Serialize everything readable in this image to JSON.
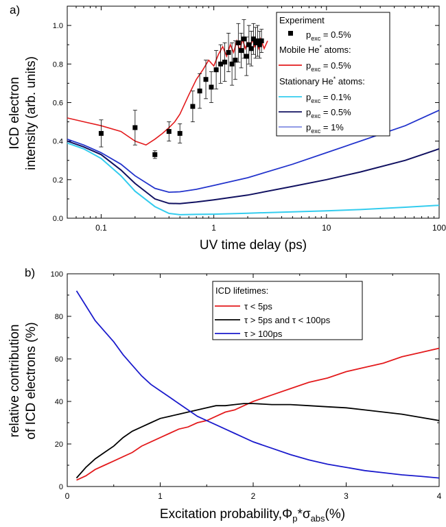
{
  "chart_data": [
    {
      "panel": "a)",
      "type": "line",
      "xlabel": "UV time delay (ps)",
      "ylabel_lines": [
        "ICD electron",
        "intensity (arb. units)"
      ],
      "xscale": "log",
      "xlim": [
        0.05,
        100
      ],
      "ylim": [
        0.0,
        1.1
      ],
      "xtick_labels": [
        {
          "v": 0.1,
          "label": "0.1"
        },
        {
          "v": 1,
          "label": "1"
        },
        {
          "v": 10,
          "label": "10"
        },
        {
          "v": 100,
          "label": "100"
        }
      ],
      "ytick_labels": [
        {
          "v": 0.0,
          "label": "0.0"
        },
        {
          "v": 0.2,
          "label": "0.2"
        },
        {
          "v": 0.4,
          "label": "0.4"
        },
        {
          "v": 0.6,
          "label": "0.6"
        },
        {
          "v": 0.8,
          "label": "0.8"
        },
        {
          "v": 1.0,
          "label": "1.0"
        }
      ],
      "legend_position": "top-right",
      "legend": {
        "experiment_header": "Experiment",
        "experiment_label": {
          "p": "p",
          "sub": "exc",
          "rest": " = 0.5%"
        },
        "mobile_header": {
          "pre": "Mobile He",
          "sup": "*",
          "post": " atoms:"
        },
        "mobile_label": {
          "p": "p",
          "sub": "exc",
          "rest": " = 0.5%"
        },
        "stationary_header": {
          "pre": "Stationary He",
          "sup": "*",
          "post": " atoms:"
        },
        "stationary_labels": [
          {
            "p": "p",
            "sub": "exc",
            "rest": " = 0.1%"
          },
          {
            "p": "p",
            "sub": "exc",
            "rest": " = 0.5%"
          },
          {
            "p": "p",
            "sub": "exc",
            "rest": " = 1%"
          }
        ]
      },
      "colors": {
        "experiment": "#000000",
        "mobile": "#e31a1c",
        "stat_01": "#33ccee",
        "stat_05": "#101060",
        "stat_1": "#2233cc"
      },
      "experiment_points": [
        {
          "x": 0.1,
          "y": 0.44,
          "err": 0.07
        },
        {
          "x": 0.2,
          "y": 0.47,
          "err": 0.09
        },
        {
          "x": 0.3,
          "y": 0.33,
          "err": 0.02
        },
        {
          "x": 0.4,
          "y": 0.45,
          "err": 0.05
        },
        {
          "x": 0.5,
          "y": 0.44,
          "err": 0.05
        },
        {
          "x": 0.65,
          "y": 0.58,
          "err": 0.08
        },
        {
          "x": 0.75,
          "y": 0.66,
          "err": 0.09
        },
        {
          "x": 0.85,
          "y": 0.72,
          "err": 0.1
        },
        {
          "x": 0.95,
          "y": 0.68,
          "err": 0.08
        },
        {
          "x": 1.05,
          "y": 0.77,
          "err": 0.1
        },
        {
          "x": 1.15,
          "y": 0.8,
          "err": 0.1
        },
        {
          "x": 1.25,
          "y": 0.81,
          "err": 0.1
        },
        {
          "x": 1.35,
          "y": 0.86,
          "err": 0.1
        },
        {
          "x": 1.45,
          "y": 0.8,
          "err": 0.11
        },
        {
          "x": 1.55,
          "y": 0.82,
          "err": 0.1
        },
        {
          "x": 1.65,
          "y": 0.91,
          "err": 0.1
        },
        {
          "x": 1.75,
          "y": 0.87,
          "err": 0.09
        },
        {
          "x": 1.85,
          "y": 0.93,
          "err": 0.1
        },
        {
          "x": 1.95,
          "y": 0.84,
          "err": 0.1
        },
        {
          "x": 2.05,
          "y": 0.9,
          "err": 0.1
        },
        {
          "x": 2.15,
          "y": 0.88,
          "err": 0.09
        },
        {
          "x": 2.25,
          "y": 0.93,
          "err": 0.08
        },
        {
          "x": 2.35,
          "y": 0.91,
          "err": 0.08
        },
        {
          "x": 2.45,
          "y": 0.92,
          "err": 0.08
        },
        {
          "x": 2.55,
          "y": 0.9,
          "err": 0.07
        },
        {
          "x": 2.65,
          "y": 0.92,
          "err": 0.06
        }
      ],
      "mobile_curve": {
        "x": [
          0.05,
          0.1,
          0.15,
          0.2,
          0.25,
          0.3,
          0.35,
          0.4,
          0.45,
          0.5,
          0.6,
          0.7,
          0.8,
          0.9,
          1.0,
          1.1,
          1.2,
          1.3,
          1.4,
          1.5,
          1.6,
          1.7,
          1.8,
          1.9,
          2.0,
          2.1,
          2.2,
          2.3,
          2.4,
          2.5,
          2.6,
          2.8,
          3.0
        ],
        "y": [
          0.52,
          0.48,
          0.45,
          0.4,
          0.38,
          0.41,
          0.44,
          0.47,
          0.5,
          0.54,
          0.64,
          0.72,
          0.77,
          0.82,
          0.79,
          0.85,
          0.89,
          0.84,
          0.9,
          0.86,
          0.92,
          0.87,
          0.93,
          0.88,
          0.91,
          0.88,
          0.93,
          0.89,
          0.91,
          0.88,
          0.93,
          0.88,
          0.92
        ]
      },
      "stationary_curves": [
        {
          "name_ref": "p_exc = 0.1%",
          "x": [
            0.05,
            0.07,
            0.1,
            0.15,
            0.2,
            0.3,
            0.4,
            0.5,
            0.7,
            1,
            2,
            5,
            10,
            20,
            50,
            100
          ],
          "y": [
            0.39,
            0.36,
            0.31,
            0.22,
            0.14,
            0.06,
            0.025,
            0.018,
            0.02,
            0.021,
            0.026,
            0.033,
            0.038,
            0.045,
            0.057,
            0.067
          ]
        },
        {
          "name_ref": "p_exc = 0.5%",
          "x": [
            0.05,
            0.07,
            0.1,
            0.15,
            0.2,
            0.3,
            0.4,
            0.5,
            0.7,
            1,
            2,
            5,
            10,
            20,
            50,
            100
          ],
          "y": [
            0.4,
            0.37,
            0.33,
            0.25,
            0.18,
            0.1,
            0.077,
            0.076,
            0.084,
            0.095,
            0.12,
            0.165,
            0.2,
            0.24,
            0.3,
            0.36
          ]
        },
        {
          "name_ref": "p_exc = 1%",
          "x": [
            0.05,
            0.07,
            0.1,
            0.15,
            0.2,
            0.3,
            0.4,
            0.5,
            0.7,
            1,
            2,
            5,
            10,
            20,
            50,
            100
          ],
          "y": [
            0.41,
            0.38,
            0.34,
            0.28,
            0.22,
            0.155,
            0.135,
            0.137,
            0.15,
            0.17,
            0.21,
            0.28,
            0.34,
            0.4,
            0.48,
            0.56
          ]
        }
      ]
    },
    {
      "panel": "b)",
      "type": "line",
      "ylabel_lines": [
        "relative contribution",
        "of ICD electrons (%)"
      ],
      "xlabel": {
        "pre": "Excitation probability,",
        "phi": "Φ",
        "phi_sub": "p",
        "mid": "*σ",
        "sigma_sub": "abs",
        "post": "(%)"
      },
      "xlim": [
        0,
        4
      ],
      "ylim": [
        0,
        100
      ],
      "xtick_labels": [
        {
          "v": 0,
          "label": "0"
        },
        {
          "v": 1,
          "label": "1"
        },
        {
          "v": 2,
          "label": "2"
        },
        {
          "v": 3,
          "label": "3"
        },
        {
          "v": 4,
          "label": "4"
        }
      ],
      "ytick_labels": [
        {
          "v": 0,
          "label": "0"
        },
        {
          "v": 20,
          "label": "20"
        },
        {
          "v": 40,
          "label": "40"
        },
        {
          "v": 60,
          "label": "60"
        },
        {
          "v": 80,
          "label": "80"
        },
        {
          "v": 100,
          "label": "100"
        }
      ],
      "legend_position": "top-center",
      "legend_title": "ICD lifetimes:",
      "series": [
        {
          "name": "τ < 5ps",
          "color": "#e31a1c",
          "x": [
            0.1,
            0.2,
            0.3,
            0.4,
            0.5,
            0.6,
            0.7,
            0.8,
            0.9,
            1.0,
            1.1,
            1.2,
            1.3,
            1.4,
            1.5,
            1.6,
            1.7,
            1.8,
            1.9,
            2.0,
            2.2,
            2.4,
            2.6,
            2.8,
            3.0,
            3.2,
            3.4,
            3.6,
            3.8,
            4.0
          ],
          "y": [
            3,
            5,
            8,
            10,
            12,
            14,
            16,
            19,
            21,
            23,
            25,
            27,
            28,
            30,
            31,
            33,
            35,
            36,
            38,
            40,
            43,
            46,
            49,
            51,
            54,
            56,
            58,
            61,
            63,
            65
          ]
        },
        {
          "name": "τ > 5ps and τ < 100ps",
          "color": "#000000",
          "x": [
            0.1,
            0.2,
            0.3,
            0.4,
            0.5,
            0.6,
            0.7,
            0.8,
            0.9,
            1.0,
            1.1,
            1.2,
            1.3,
            1.4,
            1.5,
            1.6,
            1.7,
            1.8,
            1.9,
            2.0,
            2.2,
            2.4,
            2.6,
            2.8,
            3.0,
            3.2,
            3.4,
            3.6,
            3.8,
            4.0
          ],
          "y": [
            4,
            9,
            13,
            16,
            19,
            23,
            26,
            28,
            30,
            32,
            33,
            34,
            35,
            36,
            37,
            38,
            38,
            38.5,
            39,
            39,
            38.5,
            38.5,
            38,
            37.5,
            37,
            36,
            35,
            34,
            32.5,
            31
          ]
        },
        {
          "name": "τ > 100ps",
          "color": "#1a1acc",
          "x": [
            0.1,
            0.2,
            0.3,
            0.4,
            0.5,
            0.6,
            0.7,
            0.8,
            0.9,
            1.0,
            1.1,
            1.2,
            1.3,
            1.4,
            1.5,
            1.6,
            1.7,
            1.8,
            1.9,
            2.0,
            2.2,
            2.4,
            2.6,
            2.8,
            3.0,
            3.2,
            3.4,
            3.6,
            3.8,
            4.0
          ],
          "y": [
            92,
            85,
            78,
            73,
            68,
            62,
            57,
            52,
            48,
            45,
            42,
            39,
            36,
            33,
            31,
            29,
            27,
            25,
            23,
            21,
            18,
            15,
            12.5,
            10.5,
            9,
            7.5,
            6.5,
            5.5,
            4.8,
            4
          ]
        }
      ]
    }
  ]
}
